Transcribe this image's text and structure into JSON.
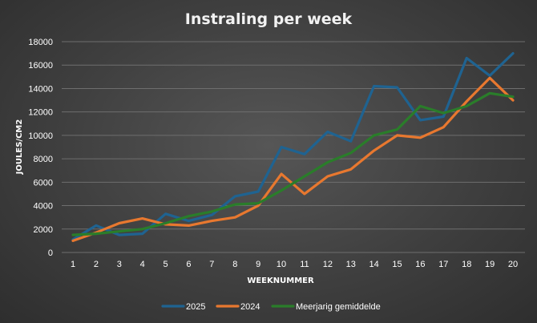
{
  "chart_data": {
    "type": "line",
    "title": "Instraling per week",
    "xlabel": "WEEKNUMMER",
    "ylabel": "JOULES/CM2",
    "x": [
      1,
      2,
      3,
      4,
      5,
      6,
      7,
      8,
      9,
      10,
      11,
      12,
      13,
      14,
      15,
      16,
      17,
      18,
      19,
      20
    ],
    "ylim": [
      0,
      18000
    ],
    "yticks": [
      0,
      2000,
      4000,
      6000,
      8000,
      10000,
      12000,
      14000,
      16000,
      18000
    ],
    "grid": true,
    "legend_position": "bottom",
    "series": [
      {
        "name": "2025",
        "color": "#1f6391",
        "values": [
          1100,
          2300,
          1500,
          1600,
          3300,
          2700,
          3200,
          4800,
          5200,
          9000,
          8400,
          10300,
          9500,
          14200,
          14100,
          11300,
          11600,
          16600,
          15100,
          17000
        ]
      },
      {
        "name": "2024",
        "color": "#e8782f",
        "values": [
          1000,
          1700,
          2500,
          2900,
          2400,
          2300,
          2700,
          3000,
          4000,
          6700,
          5000,
          6500,
          7100,
          8700,
          10000,
          9800,
          10700,
          12900,
          14900,
          13000
        ]
      },
      {
        "name": "Meerjarig gemiddelde",
        "color": "#2a7d2a",
        "values": [
          1500,
          1600,
          1800,
          2000,
          2500,
          3100,
          3500,
          4100,
          4200,
          5300,
          6500,
          7700,
          8500,
          10000,
          10500,
          12500,
          11900,
          12500,
          13600,
          13300
        ]
      }
    ]
  }
}
